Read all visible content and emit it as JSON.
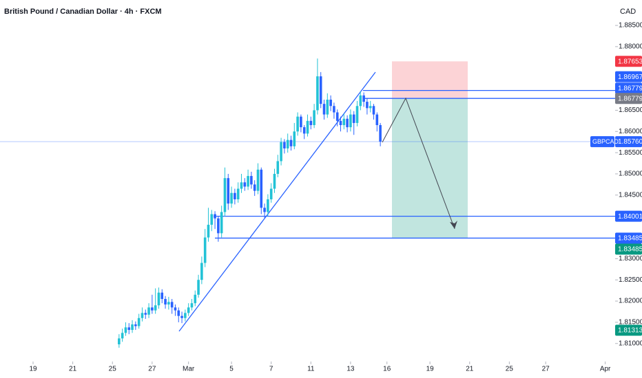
{
  "chart_data": {
    "type": "candlestick",
    "title": "British Pound / Canadian Dollar · 4h · FXCM",
    "axis_unit": "CAD",
    "up_color": "#22c2d6",
    "down_color": "#2962ff",
    "ylim": [
      1.8064,
      1.891
    ],
    "yticks": [
      {
        "value": 1.885,
        "label": "1.88500"
      },
      {
        "value": 1.88,
        "label": "1.88000"
      },
      {
        "value": 1.865,
        "label": "1.86500"
      },
      {
        "value": 1.86,
        "label": "1.86000"
      },
      {
        "value": 1.855,
        "label": "1.85500"
      },
      {
        "value": 1.85,
        "label": "1.85000"
      },
      {
        "value": 1.845,
        "label": "1.84500"
      },
      {
        "value": 1.83,
        "label": "1.83000"
      },
      {
        "value": 1.825,
        "label": "1.82500"
      },
      {
        "value": 1.82,
        "label": "1.82000"
      },
      {
        "value": 1.815,
        "label": "1.81500"
      },
      {
        "value": 1.81,
        "label": "1.81000"
      }
    ],
    "xlim": [
      -36,
      150
    ],
    "xticks": [
      {
        "value": -26,
        "label": "19"
      },
      {
        "value": -14,
        "label": "21"
      },
      {
        "value": -2,
        "label": "25"
      },
      {
        "value": 10,
        "label": "27"
      },
      {
        "value": 21,
        "label": "Mar"
      },
      {
        "value": 34,
        "label": "5"
      },
      {
        "value": 46,
        "label": "7"
      },
      {
        "value": 58,
        "label": "11"
      },
      {
        "value": 70,
        "label": "13"
      },
      {
        "value": 81,
        "label": "16"
      },
      {
        "value": 94,
        "label": "19"
      },
      {
        "value": 106,
        "label": "21"
      },
      {
        "value": 118,
        "label": "25"
      },
      {
        "value": 129,
        "label": "27"
      },
      {
        "value": 147,
        "label": "Apr"
      }
    ],
    "candles": [
      {
        "o": 1.8098,
        "h": 1.8122,
        "l": 1.809,
        "c": 1.8112
      },
      {
        "o": 1.8112,
        "h": 1.8135,
        "l": 1.8104,
        "c": 1.8125
      },
      {
        "o": 1.8125,
        "h": 1.815,
        "l": 1.8118,
        "c": 1.8138
      },
      {
        "o": 1.8138,
        "h": 1.8148,
        "l": 1.8122,
        "c": 1.8132
      },
      {
        "o": 1.8132,
        "h": 1.8155,
        "l": 1.8125,
        "c": 1.8145
      },
      {
        "o": 1.8145,
        "h": 1.8152,
        "l": 1.8132,
        "c": 1.8141
      },
      {
        "o": 1.8141,
        "h": 1.817,
        "l": 1.8135,
        "c": 1.816
      },
      {
        "o": 1.816,
        "h": 1.8185,
        "l": 1.8152,
        "c": 1.8172
      },
      {
        "o": 1.8172,
        "h": 1.818,
        "l": 1.8158,
        "c": 1.8168
      },
      {
        "o": 1.8168,
        "h": 1.8195,
        "l": 1.816,
        "c": 1.8185
      },
      {
        "o": 1.8185,
        "h": 1.8215,
        "l": 1.817,
        "c": 1.8178
      },
      {
        "o": 1.8178,
        "h": 1.823,
        "l": 1.817,
        "c": 1.819
      },
      {
        "o": 1.819,
        "h": 1.8232,
        "l": 1.8182,
        "c": 1.822
      },
      {
        "o": 1.822,
        "h": 1.8228,
        "l": 1.8195,
        "c": 1.8205
      },
      {
        "o": 1.8205,
        "h": 1.8212,
        "l": 1.8182,
        "c": 1.8192
      },
      {
        "o": 1.8192,
        "h": 1.821,
        "l": 1.818,
        "c": 1.8198
      },
      {
        "o": 1.8198,
        "h": 1.8205,
        "l": 1.817,
        "c": 1.8185
      },
      {
        "o": 1.8185,
        "h": 1.8192,
        "l": 1.8165,
        "c": 1.8178
      },
      {
        "o": 1.8178,
        "h": 1.8185,
        "l": 1.815,
        "c": 1.8165
      },
      {
        "o": 1.8165,
        "h": 1.8175,
        "l": 1.8148,
        "c": 1.816
      },
      {
        "o": 1.816,
        "h": 1.818,
        "l": 1.8152,
        "c": 1.8172
      },
      {
        "o": 1.8172,
        "h": 1.8195,
        "l": 1.8165,
        "c": 1.8185
      },
      {
        "o": 1.8185,
        "h": 1.8205,
        "l": 1.8178,
        "c": 1.8195
      },
      {
        "o": 1.8195,
        "h": 1.8225,
        "l": 1.8188,
        "c": 1.8215
      },
      {
        "o": 1.8215,
        "h": 1.8262,
        "l": 1.8208,
        "c": 1.825
      },
      {
        "o": 1.825,
        "h": 1.8305,
        "l": 1.824,
        "c": 1.829
      },
      {
        "o": 1.829,
        "h": 1.837,
        "l": 1.828,
        "c": 1.835
      },
      {
        "o": 1.835,
        "h": 1.842,
        "l": 1.834,
        "c": 1.838
      },
      {
        "o": 1.838,
        "h": 1.8415,
        "l": 1.8365,
        "c": 1.8405
      },
      {
        "o": 1.8405,
        "h": 1.8412,
        "l": 1.837,
        "c": 1.8395
      },
      {
        "o": 1.8395,
        "h": 1.84,
        "l": 1.834,
        "c": 1.836
      },
      {
        "o": 1.836,
        "h": 1.8425,
        "l": 1.835,
        "c": 1.841
      },
      {
        "o": 1.841,
        "h": 1.8515,
        "l": 1.84,
        "c": 1.849
      },
      {
        "o": 1.849,
        "h": 1.85,
        "l": 1.8415,
        "c": 1.843
      },
      {
        "o": 1.843,
        "h": 1.847,
        "l": 1.842,
        "c": 1.8455
      },
      {
        "o": 1.8455,
        "h": 1.8465,
        "l": 1.8428,
        "c": 1.844
      },
      {
        "o": 1.844,
        "h": 1.848,
        "l": 1.8432,
        "c": 1.8465
      },
      {
        "o": 1.8465,
        "h": 1.85,
        "l": 1.8455,
        "c": 1.848
      },
      {
        "o": 1.848,
        "h": 1.849,
        "l": 1.846,
        "c": 1.847
      },
      {
        "o": 1.847,
        "h": 1.851,
        "l": 1.8462,
        "c": 1.8495
      },
      {
        "o": 1.8495,
        "h": 1.8505,
        "l": 1.8465,
        "c": 1.8475
      },
      {
        "o": 1.8475,
        "h": 1.8485,
        "l": 1.8448,
        "c": 1.846
      },
      {
        "o": 1.846,
        "h": 1.8525,
        "l": 1.8452,
        "c": 1.851
      },
      {
        "o": 1.851,
        "h": 1.8515,
        "l": 1.8405,
        "c": 1.842
      },
      {
        "o": 1.842,
        "h": 1.843,
        "l": 1.8395,
        "c": 1.841
      },
      {
        "o": 1.841,
        "h": 1.8452,
        "l": 1.84,
        "c": 1.844
      },
      {
        "o": 1.844,
        "h": 1.8478,
        "l": 1.8432,
        "c": 1.8465
      },
      {
        "o": 1.8465,
        "h": 1.8512,
        "l": 1.8455,
        "c": 1.85
      },
      {
        "o": 1.85,
        "h": 1.8545,
        "l": 1.8492,
        "c": 1.853
      },
      {
        "o": 1.853,
        "h": 1.8585,
        "l": 1.852,
        "c": 1.8575
      },
      {
        "o": 1.8575,
        "h": 1.8582,
        "l": 1.8548,
        "c": 1.856
      },
      {
        "o": 1.856,
        "h": 1.8595,
        "l": 1.855,
        "c": 1.858
      },
      {
        "o": 1.858,
        "h": 1.859,
        "l": 1.8555,
        "c": 1.8565
      },
      {
        "o": 1.8565,
        "h": 1.862,
        "l": 1.8558,
        "c": 1.86
      },
      {
        "o": 1.86,
        "h": 1.8645,
        "l": 1.859,
        "c": 1.8635
      },
      {
        "o": 1.8635,
        "h": 1.864,
        "l": 1.8598,
        "c": 1.861
      },
      {
        "o": 1.861,
        "h": 1.8615,
        "l": 1.8582,
        "c": 1.8595
      },
      {
        "o": 1.8595,
        "h": 1.864,
        "l": 1.8588,
        "c": 1.8625
      },
      {
        "o": 1.8625,
        "h": 1.8635,
        "l": 1.8605,
        "c": 1.8615
      },
      {
        "o": 1.8615,
        "h": 1.8665,
        "l": 1.8608,
        "c": 1.865
      },
      {
        "o": 1.865,
        "h": 1.8772,
        "l": 1.864,
        "c": 1.873
      },
      {
        "o": 1.873,
        "h": 1.874,
        "l": 1.8655,
        "c": 1.8665
      },
      {
        "o": 1.8665,
        "h": 1.8675,
        "l": 1.8628,
        "c": 1.864
      },
      {
        "o": 1.864,
        "h": 1.869,
        "l": 1.8632,
        "c": 1.8675
      },
      {
        "o": 1.8675,
        "h": 1.8685,
        "l": 1.8648,
        "c": 1.866
      },
      {
        "o": 1.866,
        "h": 1.8668,
        "l": 1.863,
        "c": 1.8645
      },
      {
        "o": 1.8645,
        "h": 1.8652,
        "l": 1.8612,
        "c": 1.8625
      },
      {
        "o": 1.8625,
        "h": 1.8635,
        "l": 1.86,
        "c": 1.8615
      },
      {
        "o": 1.8615,
        "h": 1.8642,
        "l": 1.8605,
        "c": 1.863
      },
      {
        "o": 1.863,
        "h": 1.8638,
        "l": 1.8598,
        "c": 1.861
      },
      {
        "o": 1.861,
        "h": 1.8652,
        "l": 1.86,
        "c": 1.864
      },
      {
        "o": 1.864,
        "h": 1.8648,
        "l": 1.8592,
        "c": 1.862
      },
      {
        "o": 1.862,
        "h": 1.8672,
        "l": 1.8612,
        "c": 1.866
      },
      {
        "o": 1.866,
        "h": 1.8695,
        "l": 1.865,
        "c": 1.8685
      },
      {
        "o": 1.8685,
        "h": 1.8692,
        "l": 1.8658,
        "c": 1.867
      },
      {
        "o": 1.867,
        "h": 1.8678,
        "l": 1.864,
        "c": 1.8655
      },
      {
        "o": 1.8655,
        "h": 1.8672,
        "l": 1.8645,
        "c": 1.866
      },
      {
        "o": 1.866,
        "h": 1.8665,
        "l": 1.8628,
        "c": 1.864
      },
      {
        "o": 1.864,
        "h": 1.8645,
        "l": 1.86,
        "c": 1.8615
      },
      {
        "o": 1.8615,
        "h": 1.862,
        "l": 1.8565,
        "c": 1.8576
      }
    ],
    "price_labels": [
      {
        "value": 1.87653,
        "label": "1.87653",
        "color": "#f23645"
      },
      {
        "value": 1.86967,
        "label": "1.86967",
        "color": "#2962ff"
      },
      {
        "value": 1.86779,
        "label": "1.86779",
        "color": "#2962ff"
      },
      {
        "value": 1.86779,
        "label": "1.86779",
        "color": "#787b86"
      },
      {
        "value": 1.8576,
        "label": "1.85760",
        "color": "#2962ff",
        "name": "GBPCAD"
      },
      {
        "value": 1.84001,
        "label": "1.84001",
        "color": "#2962ff"
      },
      {
        "value": 1.83485,
        "label": "1.83485",
        "color": "#2962ff"
      },
      {
        "value": 1.83485,
        "label": "1.83485",
        "color": "#089981"
      },
      {
        "value": 1.81313,
        "label": "1.81313",
        "color": "#089981"
      }
    ]
  }
}
